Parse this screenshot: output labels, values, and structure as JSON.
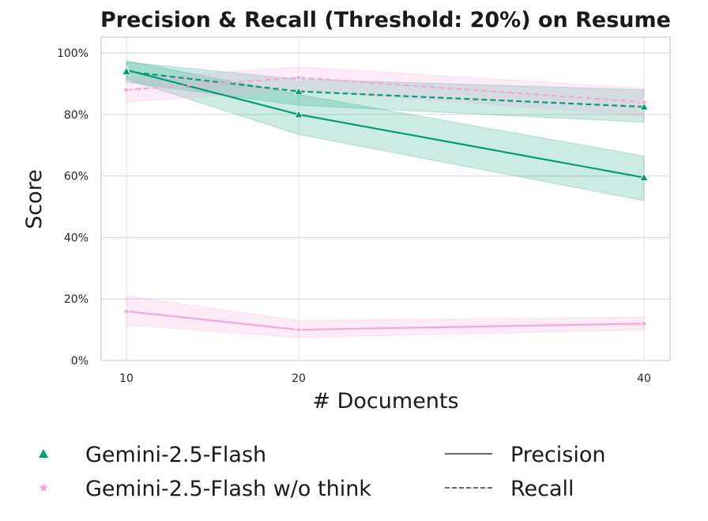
{
  "chart_data": {
    "type": "line",
    "title": "Precision & Recall (Threshold: 20%) on Resume",
    "xlabel": "# Documents",
    "ylabel": "Score",
    "x": [
      10,
      20,
      40
    ],
    "x_tick_labels": [
      "10",
      "20",
      "40"
    ],
    "ylim": [
      0,
      100
    ],
    "y_ticks": [
      0,
      20,
      40,
      60,
      80,
      100
    ],
    "y_tick_labels": [
      "0%",
      "20%",
      "40%",
      "60%",
      "80%",
      "100%"
    ],
    "grid": true,
    "legend_position": "bottom",
    "legend": {
      "models": [
        {
          "label": "Gemini-2.5-Flash",
          "color": "#009e73",
          "marker": "triangle"
        },
        {
          "label": "Gemini-2.5-Flash w/o think",
          "color": "#f4a6dc",
          "marker": "star"
        }
      ],
      "metrics": [
        {
          "label": "Precision",
          "style": "solid"
        },
        {
          "label": "Recall",
          "style": "dashed"
        }
      ]
    },
    "series": [
      {
        "model": 0,
        "metric": "Precision",
        "values": [
          94.5,
          80.0,
          59.5
        ],
        "lower": [
          91.5,
          73.5,
          52.0
        ],
        "upper": [
          97.5,
          86.5,
          66.5
        ]
      },
      {
        "model": 0,
        "metric": "Recall",
        "values": [
          94.0,
          87.5,
          82.5
        ],
        "lower": [
          90.5,
          83.0,
          77.5
        ],
        "upper": [
          97.0,
          91.5,
          88.0
        ]
      },
      {
        "model": 1,
        "metric": "Precision",
        "values": [
          16.0,
          10.0,
          12.0
        ],
        "lower": [
          11.5,
          7.5,
          10.0
        ],
        "upper": [
          21.0,
          13.0,
          14.0
        ]
      },
      {
        "model": 1,
        "metric": "Recall",
        "values": [
          88.0,
          92.0,
          84.0
        ],
        "lower": [
          84.0,
          88.0,
          79.5
        ],
        "upper": [
          91.5,
          95.5,
          88.5
        ]
      }
    ]
  }
}
